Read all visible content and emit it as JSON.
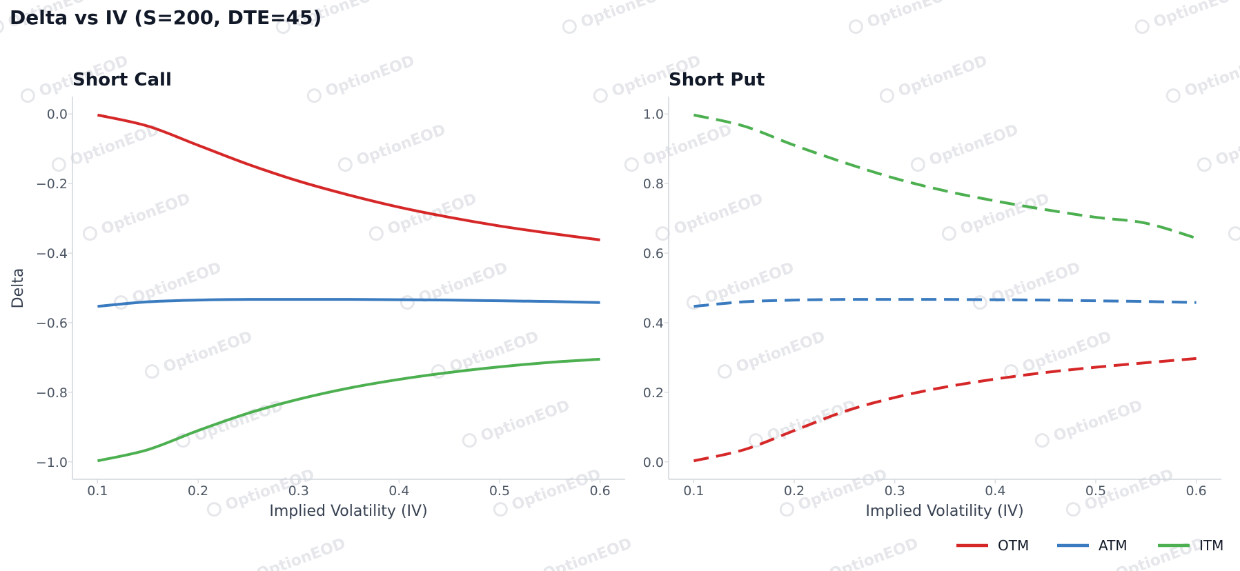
{
  "chart_data": [
    {
      "type": "line",
      "title": "Short Call",
      "xlabel": "Implied Volatility (IV)",
      "ylabel": "Delta",
      "xlim": [
        0.075,
        0.625
      ],
      "ylim": [
        -1.05,
        0.05
      ],
      "xticks": [
        0.1,
        0.2,
        0.3,
        0.4,
        0.5,
        0.6
      ],
      "xtick_labels": [
        "0.1",
        "0.2",
        "0.3",
        "0.4",
        "0.5",
        "0.6"
      ],
      "yticks": [
        0.0,
        -0.2,
        -0.4,
        -0.6,
        -0.8,
        -1.0
      ],
      "ytick_labels": [
        "0.0",
        "−0.2",
        "−0.4",
        "−0.6",
        "−0.8",
        "−1.0"
      ],
      "line_style": "solid",
      "grid": false,
      "x": [
        0.1,
        0.15,
        0.2,
        0.25,
        0.3,
        0.35,
        0.4,
        0.45,
        0.5,
        0.55,
        0.6
      ],
      "series": [
        {
          "name": "OTM",
          "color": "#d62728",
          "values": [
            -0.003,
            -0.035,
            -0.09,
            -0.145,
            -0.193,
            -0.233,
            -0.268,
            -0.297,
            -0.322,
            -0.343,
            -0.362
          ]
        },
        {
          "name": "ATM",
          "color": "#3a7bbf",
          "values": [
            -0.553,
            -0.54,
            -0.535,
            -0.533,
            -0.533,
            -0.533,
            -0.534,
            -0.535,
            -0.537,
            -0.539,
            -0.542
          ]
        },
        {
          "name": "ITM",
          "color": "#4caf50",
          "values": [
            -0.997,
            -0.965,
            -0.91,
            -0.86,
            -0.82,
            -0.788,
            -0.763,
            -0.743,
            -0.727,
            -0.714,
            -0.705
          ]
        }
      ]
    },
    {
      "type": "line",
      "title": "Short Put",
      "xlabel": "Implied Volatility (IV)",
      "ylabel": "",
      "xlim": [
        0.075,
        0.625
      ],
      "ylim": [
        -0.05,
        1.05
      ],
      "xticks": [
        0.1,
        0.2,
        0.3,
        0.4,
        0.5,
        0.6
      ],
      "xtick_labels": [
        "0.1",
        "0.2",
        "0.3",
        "0.4",
        "0.5",
        "0.6"
      ],
      "yticks": [
        1.0,
        0.8,
        0.6,
        0.4,
        0.2,
        0.0
      ],
      "ytick_labels": [
        "1.0",
        "0.8",
        "0.6",
        "0.4",
        "0.2",
        "0.0"
      ],
      "line_style": "dashed",
      "grid": false,
      "x": [
        0.1,
        0.15,
        0.2,
        0.25,
        0.3,
        0.35,
        0.4,
        0.45,
        0.5,
        0.55,
        0.6
      ],
      "series": [
        {
          "name": "OTM",
          "color": "#d62728",
          "values": [
            0.003,
            0.035,
            0.09,
            0.145,
            0.185,
            0.215,
            0.238,
            0.257,
            0.272,
            0.285,
            0.297
          ]
        },
        {
          "name": "ATM",
          "color": "#3a7bbf",
          "values": [
            0.447,
            0.46,
            0.465,
            0.467,
            0.467,
            0.467,
            0.466,
            0.465,
            0.463,
            0.461,
            0.458
          ]
        },
        {
          "name": "ITM",
          "color": "#4caf50",
          "values": [
            0.997,
            0.965,
            0.91,
            0.86,
            0.815,
            0.779,
            0.75,
            0.725,
            0.703,
            0.686,
            0.643
          ]
        }
      ]
    }
  ],
  "figure": {
    "title": "Delta vs IV (S=200, DTE=45)",
    "watermark": "OptionEOD",
    "legend_placement": "bottom-right",
    "legend": [
      {
        "name": "OTM",
        "color": "#d62728"
      },
      {
        "name": "ATM",
        "color": "#3a7bbf"
      },
      {
        "name": "ITM",
        "color": "#4caf50"
      }
    ]
  }
}
